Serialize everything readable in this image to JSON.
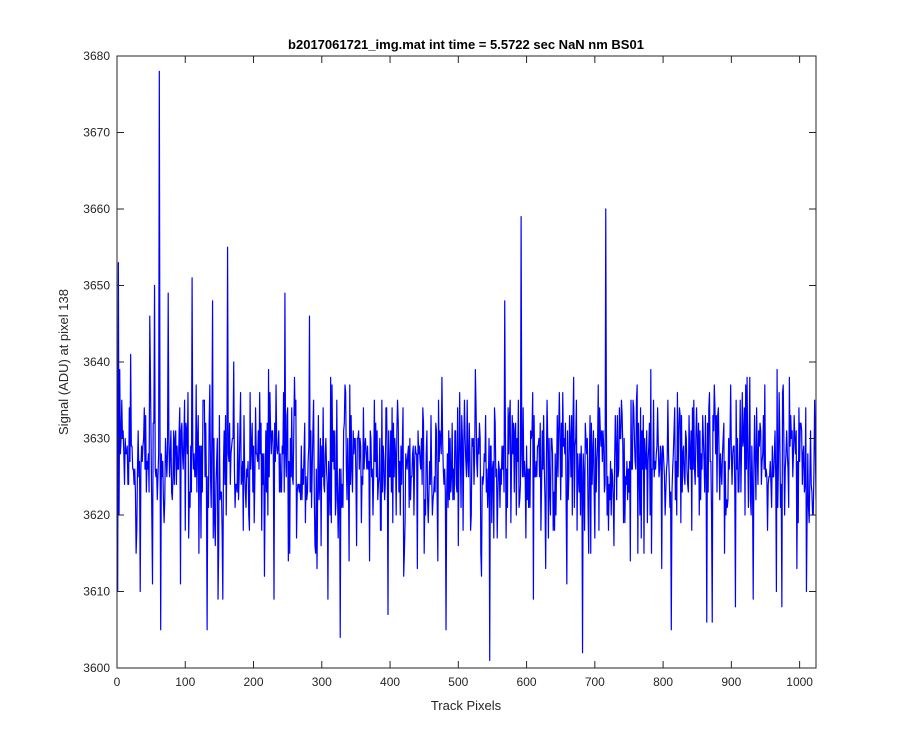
{
  "chart_data": {
    "type": "line",
    "title": "b2017061721_img.mat int time = 5.5722 sec  NaN nm BS01",
    "xlabel": "Track Pixels",
    "ylabel": "Signal (ADU) at pixel 138",
    "xlim": [
      0,
      1024
    ],
    "ylim": [
      3600,
      3680
    ],
    "xticks": [
      0,
      100,
      200,
      300,
      400,
      500,
      600,
      700,
      800,
      900,
      1000
    ],
    "yticks": [
      3600,
      3610,
      3620,
      3630,
      3640,
      3650,
      3660,
      3670,
      3680
    ],
    "xtick_labels": [
      "0",
      "100",
      "200",
      "300",
      "400",
      "500",
      "600",
      "700",
      "800",
      "900",
      "1000"
    ],
    "ytick_labels": [
      "3600",
      "3610",
      "3620",
      "3630",
      "3640",
      "3650",
      "3660",
      "3670",
      "3680"
    ],
    "grid": false,
    "legend": "none",
    "series": [
      {
        "color": "#0000ff",
        "x_start": 1,
        "x_step": 1,
        "n": 1024,
        "baseline": 3627,
        "noise_range": 9,
        "anchors": [
          [
            1,
            3610
          ],
          [
            2,
            3653
          ],
          [
            3,
            3620
          ],
          [
            4,
            3639
          ],
          [
            6,
            3630
          ],
          [
            20,
            3641
          ],
          [
            28,
            3615
          ],
          [
            34,
            3610
          ],
          [
            48,
            3646
          ],
          [
            52,
            3611
          ],
          [
            55,
            3650
          ],
          [
            60,
            3625
          ],
          [
            62,
            3678
          ],
          [
            64,
            3605
          ],
          [
            66,
            3625
          ],
          [
            75,
            3649
          ],
          [
            93,
            3611
          ],
          [
            110,
            3651
          ],
          [
            120,
            3615
          ],
          [
            132,
            3605
          ],
          [
            140,
            3648
          ],
          [
            148,
            3609
          ],
          [
            155,
            3609
          ],
          [
            162,
            3655
          ],
          [
            185,
            3618
          ],
          [
            216,
            3612
          ],
          [
            230,
            3609
          ],
          [
            246,
            3649
          ],
          [
            251,
            3614
          ],
          [
            282,
            3646
          ],
          [
            290,
            3616
          ],
          [
            309,
            3609
          ],
          [
            327,
            3604
          ],
          [
            340,
            3614
          ],
          [
            370,
            3614
          ],
          [
            397,
            3607
          ],
          [
            420,
            3612
          ],
          [
            440,
            3613
          ],
          [
            470,
            3614
          ],
          [
            482,
            3605
          ],
          [
            500,
            3616
          ],
          [
            507,
            3618
          ],
          [
            534,
            3612
          ],
          [
            546,
            3601
          ],
          [
            568,
            3648
          ],
          [
            592,
            3659
          ],
          [
            610,
            3609
          ],
          [
            628,
            3613
          ],
          [
            659,
            3611
          ],
          [
            682,
            3602
          ],
          [
            691,
            3615
          ],
          [
            716,
            3660
          ],
          [
            728,
            3616
          ],
          [
            752,
            3614
          ],
          [
            783,
            3615
          ],
          [
            798,
            3613
          ],
          [
            812,
            3605
          ],
          [
            826,
            3619
          ],
          [
            864,
            3606
          ],
          [
            872,
            3606
          ],
          [
            890,
            3615
          ],
          [
            906,
            3608
          ],
          [
            916,
            3636
          ],
          [
            932,
            3609
          ],
          [
            953,
            3618
          ],
          [
            966,
            3610
          ],
          [
            974,
            3608
          ],
          [
            996,
            3613
          ],
          [
            1010,
            3610
          ],
          [
            1020,
            3620
          ],
          [
            1022,
            3635
          ]
        ]
      }
    ]
  }
}
